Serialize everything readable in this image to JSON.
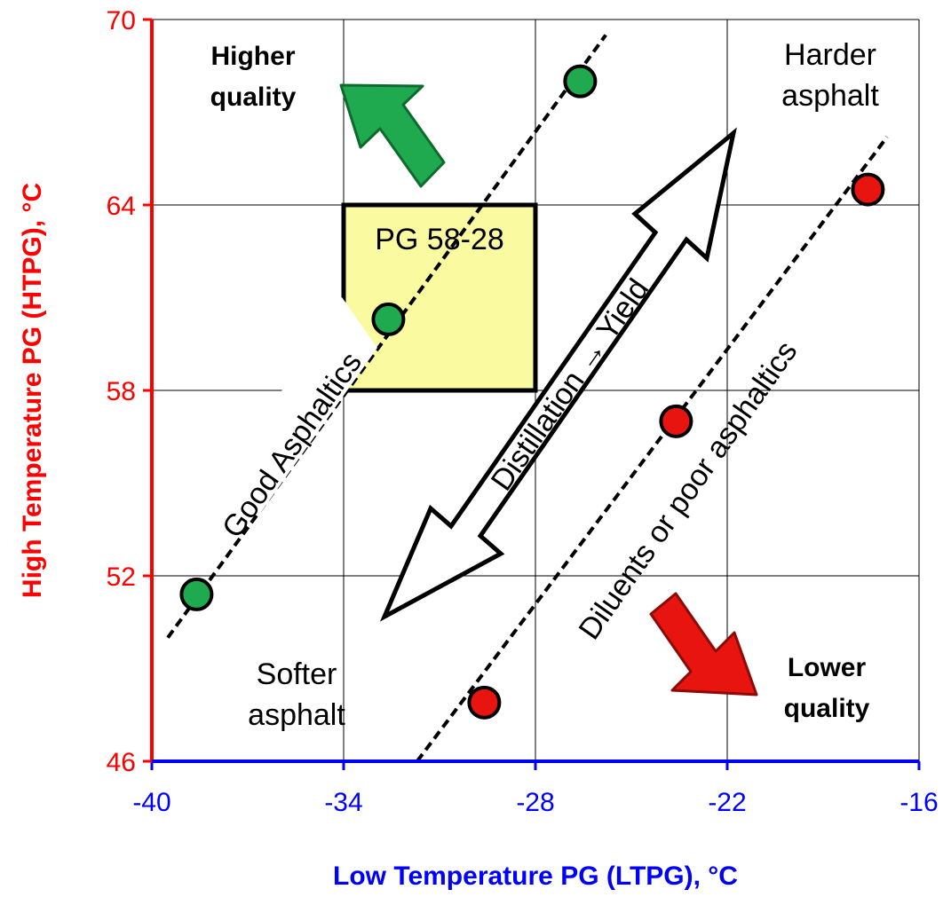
{
  "chart_data": {
    "type": "scatter",
    "xlabel": "Low Temperature PG (LTPG), °C",
    "ylabel": "High Temperature PG (HTPG), °C",
    "xlim": [
      -40,
      -16
    ],
    "ylim": [
      46,
      70
    ],
    "xticks": [
      "-40",
      "-34",
      "-28",
      "-22",
      "-16"
    ],
    "yticks": [
      "46",
      "52",
      "58",
      "64",
      "70"
    ],
    "grid": true,
    "series": [
      {
        "name": "Good Asphaltics",
        "color": "#1faa4f",
        "points": [
          [
            -38.6,
            51.4
          ],
          [
            -32.6,
            60.3
          ],
          [
            -26.6,
            68.0
          ]
        ]
      },
      {
        "name": "Diluents or poor asphaltics",
        "color": "#e8140f",
        "points": [
          [
            -29.6,
            47.9
          ],
          [
            -23.6,
            57.0
          ],
          [
            -17.6,
            64.5
          ]
        ]
      }
    ],
    "trend_lines": [
      {
        "from": [
          -39.5,
          50.0
        ],
        "to": [
          -25.8,
          69.5
        ]
      },
      {
        "from": [
          -31.7,
          46.0
        ],
        "to": [
          -17.0,
          66.2
        ]
      }
    ],
    "region": {
      "label": "PG 58-28",
      "x": [
        -34,
        -28
      ],
      "y": [
        58,
        64
      ],
      "color": "#fafaa0"
    },
    "annotations": {
      "higher_quality": "Higher quality",
      "lower_quality": "Lower quality",
      "harder": "Harder asphalt",
      "softer": "Softer asphalt",
      "good": "Good Asphaltics",
      "diluents": "Diluents or poor asphaltics",
      "distillation": "Distillation → Yield"
    },
    "colors": {
      "y_axis": "#ff0000",
      "x_axis": "#0000ff",
      "green_arrow": "#1faa4f",
      "red_arrow": "#e8140f"
    }
  }
}
